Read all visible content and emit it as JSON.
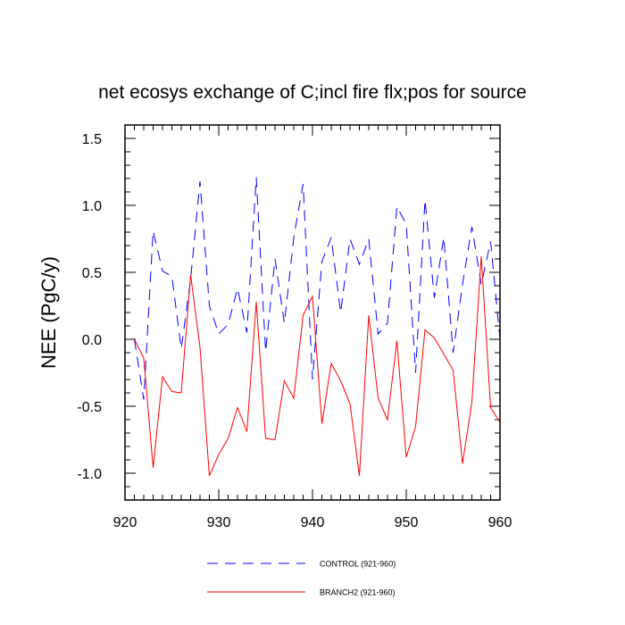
{
  "chart_data": {
    "type": "line",
    "title": "net ecosys exchange of C;incl fire flx;pos for source",
    "xlabel": "",
    "ylabel": "NEE  (PgC/y)",
    "xlim": [
      920,
      960
    ],
    "ylim": [
      -1.2,
      1.6
    ],
    "xticks": [
      920,
      930,
      940,
      950,
      960
    ],
    "yticks": [
      -1.0,
      -0.5,
      0.0,
      0.5,
      1.0,
      1.5
    ],
    "xtick_labels": [
      "920",
      "930",
      "940",
      "950",
      "960"
    ],
    "ytick_labels": [
      "-1.0",
      "-0.5",
      "0.0",
      "0.5",
      "1.0",
      "1.5"
    ],
    "legend_position": "bottom",
    "x": [
      921,
      922,
      923,
      924,
      925,
      926,
      927,
      928,
      929,
      930,
      931,
      932,
      933,
      934,
      935,
      936,
      937,
      938,
      939,
      940,
      941,
      942,
      943,
      944,
      945,
      946,
      947,
      948,
      949,
      950,
      951,
      952,
      953,
      954,
      955,
      956,
      957,
      958,
      959,
      960
    ],
    "series": [
      {
        "name": "CONTROL (921-960)",
        "color": "#0000ff",
        "style": "dashed",
        "values": [
          0.0,
          -0.45,
          0.81,
          0.51,
          0.47,
          -0.07,
          0.45,
          1.18,
          0.25,
          0.04,
          0.11,
          0.38,
          0.05,
          1.21,
          -0.09,
          0.6,
          0.12,
          0.76,
          1.16,
          -0.3,
          0.58,
          0.76,
          0.2,
          0.75,
          0.56,
          0.75,
          0.04,
          0.12,
          0.99,
          0.86,
          -0.25,
          1.04,
          0.31,
          0.76,
          -0.1,
          0.41,
          0.84,
          0.41,
          0.73,
          0.0
        ]
      },
      {
        "name": "BRANCH2 (921-960)",
        "color": "#ff0000",
        "style": "solid",
        "values": [
          0.0,
          -0.14,
          -0.96,
          -0.28,
          -0.39,
          -0.4,
          0.48,
          -0.06,
          -1.02,
          -0.86,
          -0.74,
          -0.51,
          -0.69,
          0.28,
          -0.74,
          -0.75,
          -0.31,
          -0.44,
          0.18,
          0.32,
          -0.63,
          -0.18,
          -0.31,
          -0.48,
          -1.02,
          0.18,
          -0.44,
          -0.6,
          -0.01,
          -0.88,
          -0.65,
          0.07,
          0.01,
          -0.11,
          -0.23,
          -0.93,
          -0.47,
          0.62,
          -0.51,
          -0.62
        ]
      }
    ]
  }
}
